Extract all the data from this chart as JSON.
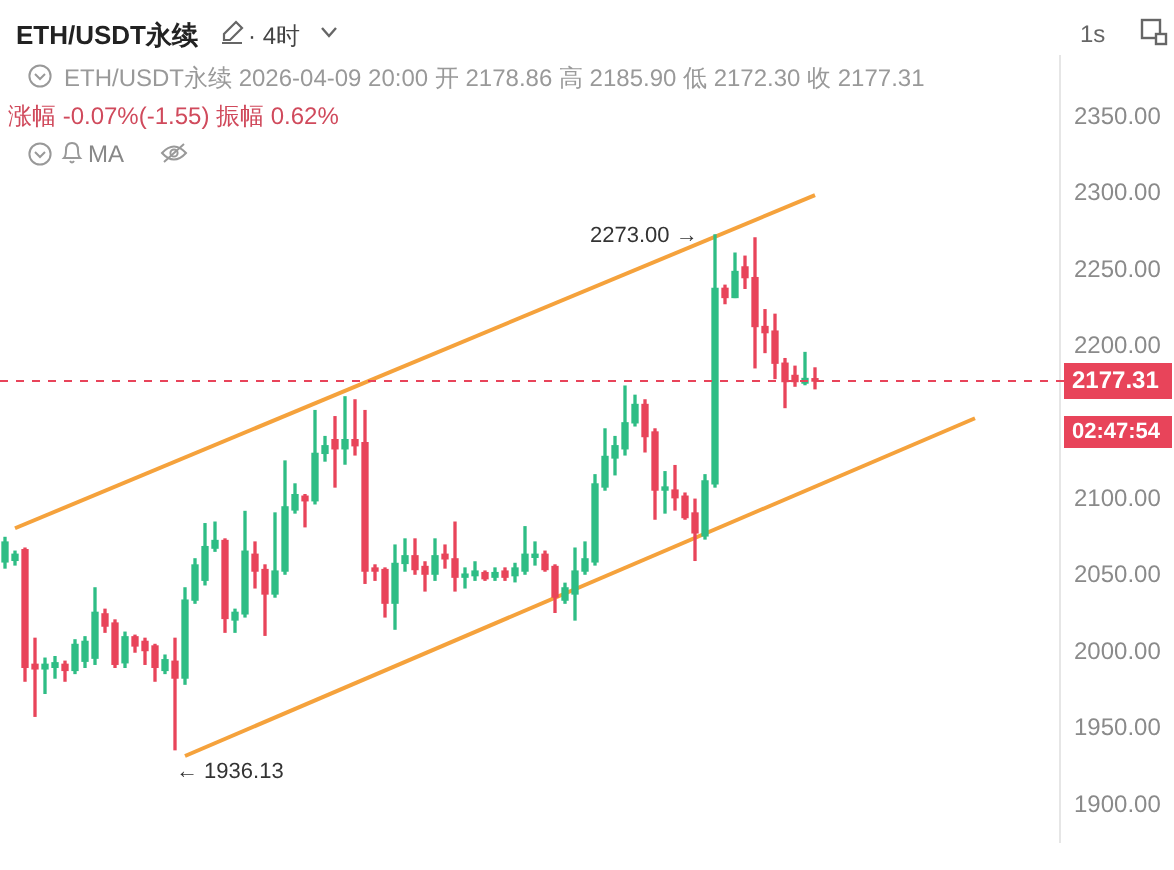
{
  "chart_data": {
    "type": "candlestick",
    "title": "ETH/USDT永续",
    "subtitle": "· 4时",
    "categories": [
      null,
      null,
      null,
      null,
      null,
      null,
      null,
      null,
      null,
      null,
      null,
      null,
      null,
      null,
      null,
      null,
      null,
      null,
      null,
      null,
      null,
      null,
      null,
      null,
      null,
      null,
      null,
      null,
      null,
      null,
      null,
      null,
      null,
      null,
      null,
      null,
      null,
      null,
      null,
      null,
      null,
      null,
      null,
      null,
      null,
      null,
      null,
      null,
      null,
      null,
      null,
      null,
      null,
      null,
      null,
      null,
      null,
      null,
      null,
      null,
      null,
      null,
      null,
      null,
      null,
      null,
      null,
      null,
      null,
      null,
      null,
      null,
      null,
      null,
      null,
      null,
      null,
      null,
      null,
      null,
      null,
      null,
      null,
      null,
      null,
      null,
      null,
      null,
      null,
      null,
      null,
      null,
      null,
      null,
      null,
      null,
      null,
      null,
      null,
      null,
      null,
      null,
      null,
      null,
      null,
      null
    ],
    "ohlc": [
      [
        2059,
        2075,
        2055,
        2072
      ],
      [
        2060,
        2066,
        2057,
        2064
      ],
      [
        2067,
        2068,
        1981,
        1990
      ],
      [
        1992,
        2009,
        1958,
        1989
      ],
      [
        1989,
        1996,
        1973,
        1992
      ],
      [
        1990,
        1997,
        1983,
        1993
      ],
      [
        1992,
        1994,
        1981,
        1988
      ],
      [
        1988,
        2008,
        1986,
        2005
      ],
      [
        1994,
        2010,
        1990,
        2007
      ],
      [
        1996,
        2042,
        1992,
        2026
      ],
      [
        2025,
        2028,
        2013,
        2017
      ],
      [
        2019,
        2021,
        1990,
        1992
      ],
      [
        1993,
        2013,
        1990,
        2010
      ],
      [
        2010,
        2011,
        2000,
        2004
      ],
      [
        2007,
        2009,
        1992,
        2001
      ],
      [
        2004,
        2005,
        1981,
        1990
      ],
      [
        1988,
        1998,
        1986,
        1995
      ],
      [
        1994,
        2009,
        1936.13,
        1983
      ],
      [
        1983,
        2042,
        1979,
        2034
      ],
      [
        2034,
        2061,
        2032,
        2057
      ],
      [
        2047,
        2084,
        2044,
        2069
      ],
      [
        2068,
        2085,
        2066,
        2073
      ],
      [
        2073,
        2074,
        2013,
        2022
      ],
      [
        2021,
        2028,
        2013,
        2026
      ],
      [
        2025,
        2092,
        2023,
        2066
      ],
      [
        2064,
        2072,
        2042,
        2053
      ],
      [
        2054,
        2057,
        2011,
        2038
      ],
      [
        2038,
        2091,
        2036,
        2053
      ],
      [
        2053,
        2125,
        2051,
        2095
      ],
      [
        2093,
        2110,
        2091,
        2103
      ],
      [
        2102,
        2103,
        2082,
        2099
      ],
      [
        2099,
        2158,
        2097,
        2130
      ],
      [
        2130,
        2141,
        2125,
        2135
      ],
      [
        2139,
        2154,
        2108,
        2133
      ],
      [
        2133,
        2167,
        2123,
        2139
      ],
      [
        2139,
        2165,
        2129,
        2135
      ],
      [
        2137,
        2158,
        2045,
        2053
      ],
      [
        2055,
        2057,
        2047,
        2053
      ],
      [
        2054,
        2055,
        2023,
        2032
      ],
      [
        2032,
        2070,
        2015,
        2058
      ],
      [
        2058,
        2074,
        2053,
        2063
      ],
      [
        2063,
        2074,
        2051,
        2054
      ],
      [
        2056,
        2059,
        2040,
        2051
      ],
      [
        2051,
        2074,
        2047,
        2063
      ],
      [
        2064,
        2070,
        2055,
        2061
      ],
      [
        2061,
        2085,
        2040,
        2049
      ],
      [
        2049,
        2055,
        2042,
        2051
      ],
      [
        2050,
        2059,
        2047,
        2053
      ],
      [
        2052,
        2053,
        2047,
        2048
      ],
      [
        2049,
        2055,
        2047,
        2052
      ],
      [
        2053,
        2055,
        2047,
        2049
      ],
      [
        2050,
        2058,
        2046,
        2055
      ],
      [
        2053,
        2082,
        2051,
        2064
      ],
      [
        2062,
        2072,
        2057,
        2064
      ],
      [
        2064,
        2066,
        2053,
        2054
      ],
      [
        2056,
        2057,
        2026,
        2036
      ],
      [
        2034,
        2045,
        2032,
        2042
      ],
      [
        2038,
        2068,
        2021,
        2053
      ],
      [
        2053,
        2072,
        2051,
        2061
      ],
      [
        2059,
        2116,
        2057,
        2110
      ],
      [
        2108,
        2146,
        2106,
        2128
      ],
      [
        2127,
        2141,
        2116,
        2135
      ],
      [
        2133,
        2174,
        2129,
        2150
      ],
      [
        2150,
        2168,
        2148,
        2162
      ],
      [
        2162,
        2165,
        2131,
        2141
      ],
      [
        2144,
        2146,
        2087,
        2106
      ],
      [
        2106,
        2118,
        2091,
        2108
      ],
      [
        2106,
        2122,
        2093,
        2101
      ],
      [
        2102,
        2104,
        2087,
        2088
      ],
      [
        2091,
        2100,
        2060,
        2078
      ],
      [
        2076,
        2116,
        2074,
        2112
      ],
      [
        2110,
        2273,
        2108,
        2238
      ],
      [
        2238,
        2240,
        2228,
        2232
      ],
      [
        2232,
        2261,
        2232,
        2249
      ],
      [
        2252,
        2259,
        2238,
        2245
      ],
      [
        2245,
        2271,
        2186,
        2213
      ],
      [
        2213,
        2224,
        2196,
        2209
      ],
      [
        2210,
        2221,
        2179,
        2189
      ],
      [
        2189,
        2192,
        2160,
        2177
      ],
      [
        2181,
        2187,
        2174,
        2177
      ],
      [
        2176,
        2196,
        2175,
        2179
      ],
      [
        2178.86,
        2185.9,
        2172.3,
        2177.31
      ],
      null,
      null,
      null,
      null,
      null,
      null,
      null,
      null,
      null,
      null,
      null,
      null,
      null,
      null,
      null,
      null,
      null,
      null,
      null,
      null,
      null,
      null,
      null,
      null
    ],
    "colors": [
      "#2ebd85",
      "#2ebd85",
      "#e8445a",
      "#e8445a",
      "#2ebd85",
      "#2ebd85",
      "#e8445a",
      "#2ebd85",
      "#2ebd85",
      "#2ebd85",
      "#e8445a",
      "#e8445a",
      "#2ebd85",
      "#e8445a",
      "#e8445a",
      "#e8445a",
      "#2ebd85",
      "#e8445a",
      "#2ebd85",
      "#2ebd85",
      "#2ebd85",
      "#2ebd85",
      "#e8445a",
      "#2ebd85",
      "#2ebd85",
      "#e8445a",
      "#e8445a",
      "#2ebd85",
      "#2ebd85",
      "#2ebd85",
      "#e8445a",
      "#2ebd85",
      "#2ebd85",
      "#e8445a",
      "#2ebd85",
      "#e8445a",
      "#e8445a",
      "#e8445a",
      "#e8445a",
      "#2ebd85",
      "#2ebd85",
      "#e8445a",
      "#e8445a",
      "#2ebd85",
      "#e8445a",
      "#e8445a",
      "#2ebd85",
      "#2ebd85",
      "#e8445a",
      "#2ebd85",
      "#e8445a",
      "#2ebd85",
      "#2ebd85",
      "#2ebd85",
      "#e8445a",
      "#e8445a",
      "#2ebd85",
      "#2ebd85",
      "#2ebd85",
      "#2ebd85",
      "#2ebd85",
      "#2ebd85",
      "#2ebd85",
      "#2ebd85",
      "#e8445a",
      "#e8445a",
      "#2ebd85",
      "#e8445a",
      "#e8445a",
      "#e8445a",
      "#2ebd85",
      "#2ebd85",
      "#e8445a",
      "#2ebd85",
      "#e8445a",
      "#e8445a",
      "#e8445a",
      "#e8445a",
      "#e8445a",
      "#e8445a",
      "#2ebd85",
      "#e8445a",
      null,
      null,
      null,
      null,
      null,
      null,
      null,
      null,
      null,
      null,
      null,
      null,
      null,
      null,
      null,
      null,
      null,
      null,
      null,
      null,
      null,
      null,
      null,
      null
    ],
    "series": [
      {
        "type": "line",
        "color": "#f5a23c",
        "values": [
          null,
          2081,
          null,
          null,
          null,
          null,
          null,
          null,
          null,
          null,
          null,
          null,
          null,
          null,
          null,
          null,
          null,
          null,
          null,
          null,
          null,
          null,
          null,
          null,
          null,
          null,
          null,
          null,
          null,
          null,
          null,
          null,
          null,
          null,
          null,
          null,
          null,
          null,
          null,
          null,
          null,
          null,
          null,
          null,
          null,
          null,
          null,
          null,
          null,
          null,
          null,
          null,
          null,
          null,
          null,
          null,
          null,
          null,
          null,
          null,
          null,
          null,
          null,
          null,
          null,
          null,
          null,
          null,
          null,
          null,
          null,
          null,
          null,
          null,
          null,
          null,
          null,
          null,
          null,
          null,
          null,
          2299,
          null,
          null,
          null,
          null,
          null,
          null,
          null,
          null,
          null,
          null,
          null,
          null,
          null,
          null,
          null,
          null,
          null,
          null,
          null,
          null,
          null,
          null,
          null,
          null
        ]
      },
      {
        "type": "line",
        "color": "#f5a23c",
        "values": [
          null,
          null,
          null,
          null,
          null,
          null,
          null,
          null,
          null,
          null,
          null,
          null,
          null,
          null,
          null,
          null,
          null,
          null,
          1932,
          null,
          null,
          null,
          null,
          null,
          null,
          null,
          null,
          null,
          null,
          null,
          null,
          null,
          null,
          null,
          null,
          null,
          null,
          null,
          null,
          null,
          null,
          null,
          null,
          null,
          null,
          null,
          null,
          null,
          null,
          null,
          null,
          null,
          null,
          null,
          null,
          null,
          null,
          null,
          null,
          null,
          null,
          null,
          null,
          null,
          null,
          null,
          null,
          null,
          null,
          null,
          null,
          null,
          null,
          null,
          null,
          null,
          null,
          null,
          null,
          null,
          null,
          null,
          null,
          null,
          null,
          null,
          null,
          null,
          null,
          null,
          null,
          null,
          null,
          null,
          null,
          null,
          null,
          2153,
          null,
          null,
          null,
          null,
          null,
          null,
          null,
          null
        ]
      }
    ],
    "ylim": [
      1876,
      2390
    ],
    "yticks": [
      {
        "value": 1900,
        "label": "1900.00"
      },
      {
        "value": 1950,
        "label": "1950.00"
      },
      {
        "value": 2000,
        "label": "2000.00"
      },
      {
        "value": 2050,
        "label": "2050.00"
      },
      {
        "value": 2100,
        "label": "2100.00"
      },
      {
        "value": 2200,
        "label": "2200.00"
      },
      {
        "value": 2250,
        "label": "2250.00"
      },
      {
        "value": 2300,
        "label": "2300.00"
      },
      {
        "value": 2350,
        "label": "2350.00"
      }
    ],
    "tick_labels": "y",
    "grid": false,
    "ref_lines": [
      {
        "axis": "y",
        "value": 2177.31,
        "label": "2177.31",
        "color": "#e8445a",
        "line_style": "dashed"
      }
    ],
    "annotations": [
      "ETH/USDT永续  2026-04-09 20:00  开 2178.86  高 2185.90  低 2172.30  收 2177.31",
      "涨幅 -0.07%(-1.55)  振幅 0.62%",
      "MA",
      "1s",
      "02:47:54",
      "2273.00 →",
      "← 1936.13"
    ]
  }
}
